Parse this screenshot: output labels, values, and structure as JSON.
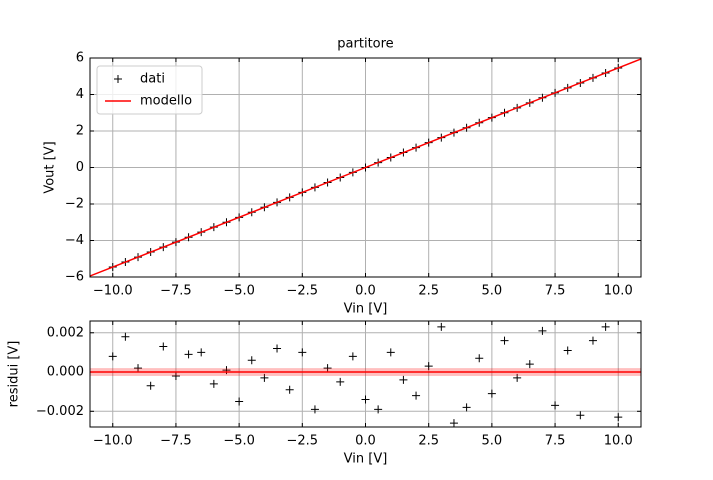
{
  "chart_data": [
    {
      "type": "scatter",
      "title": "partitore",
      "xlabel": "Vin [V]",
      "ylabel": "Vout [V]",
      "xlim": [
        -10.9,
        10.9
      ],
      "ylim": [
        -6,
        6
      ],
      "xticks": [
        {
          "value": -10,
          "label": "−10.0"
        },
        {
          "value": -7.5,
          "label": "−7.5"
        },
        {
          "value": -5,
          "label": "−5.0"
        },
        {
          "value": -2.5,
          "label": "−2.5"
        },
        {
          "value": 0,
          "label": "0.0"
        },
        {
          "value": 2.5,
          "label": "2.5"
        },
        {
          "value": 5,
          "label": "5.0"
        },
        {
          "value": 7.5,
          "label": "7.5"
        },
        {
          "value": 10,
          "label": "10.0"
        }
      ],
      "yticks": [
        {
          "value": -6,
          "label": "−6"
        },
        {
          "value": -4,
          "label": "−4"
        },
        {
          "value": -2,
          "label": "−2"
        },
        0,
        2,
        4,
        6
      ],
      "grid": true,
      "legend": "upper-left",
      "series": [
        {
          "name": "dati",
          "type": "scatter",
          "color": "#000000",
          "x": [
            -10,
            -9.5,
            -9,
            -8.5,
            -8,
            -7.5,
            -7,
            -6.5,
            -6,
            -5.5,
            -5,
            -4.5,
            -4,
            -3.5,
            -3,
            -2.5,
            -2,
            -1.5,
            -1,
            -0.5,
            0,
            0.5,
            1,
            1.5,
            2,
            2.5,
            3,
            3.5,
            4,
            4.5,
            5,
            5.5,
            6,
            6.5,
            7,
            7.5,
            8,
            8.5,
            9,
            9.5,
            10
          ],
          "values": [
            -5.45,
            -5.18,
            -4.91,
            -4.63,
            -4.36,
            -4.09,
            -3.82,
            -3.54,
            -3.27,
            -3.0,
            -2.73,
            -2.45,
            -2.18,
            -1.91,
            -1.64,
            -1.36,
            -1.09,
            -0.82,
            -0.55,
            -0.27,
            0,
            0.27,
            0.55,
            0.82,
            1.09,
            1.36,
            1.64,
            1.91,
            2.18,
            2.45,
            2.73,
            3.0,
            3.27,
            3.54,
            3.82,
            4.09,
            4.36,
            4.63,
            4.91,
            5.18,
            5.45
          ]
        },
        {
          "name": "modello",
          "type": "line",
          "color": "#ff0000",
          "x": [
            -11,
            11
          ],
          "values": [
            -6,
            6
          ]
        }
      ]
    },
    {
      "type": "scatter",
      "xlabel": "Vin [V]",
      "ylabel": "residui [V]",
      "xlim": [
        -10.9,
        10.9
      ],
      "ylim": [
        -0.0028,
        0.0026
      ],
      "xticks": [
        {
          "value": -10,
          "label": "−10.0"
        },
        {
          "value": -7.5,
          "label": "−7.5"
        },
        {
          "value": -5,
          "label": "−5.0"
        },
        {
          "value": -2.5,
          "label": "−2.5"
        },
        {
          "value": 0,
          "label": "0.0"
        },
        {
          "value": 2.5,
          "label": "2.5"
        },
        {
          "value": 5,
          "label": "5.0"
        },
        {
          "value": 7.5,
          "label": "7.5"
        },
        {
          "value": 10,
          "label": "10.0"
        }
      ],
      "yticks": [
        {
          "value": -0.002,
          "label": "−0.002"
        },
        {
          "value": 0,
          "label": "0.000"
        },
        {
          "value": 0.002,
          "label": "0.002"
        }
      ],
      "grid": true,
      "series": [
        {
          "type": "scatter",
          "color": "#000000",
          "x": [
            -10,
            -9.5,
            -9,
            -8.5,
            -8,
            -7.5,
            -7,
            -6.5,
            -6,
            -5.5,
            -5,
            -4.5,
            -4,
            -3.5,
            -3,
            -2.5,
            -2,
            -1.5,
            -1,
            -0.5,
            0,
            0.5,
            1,
            1.5,
            2,
            2.5,
            3,
            3.5,
            4,
            4.5,
            5,
            5.5,
            6,
            6.5,
            7,
            7.5,
            8,
            8.5,
            9,
            9.5,
            10
          ],
          "values": [
            0.0008,
            0.0018,
            0.0002,
            -0.0007,
            0.0013,
            -0.0002,
            0.0009,
            0.001,
            -0.0006,
            0.0001,
            -0.0015,
            0.0006,
            -0.0003,
            0.0012,
            -0.0009,
            0.001,
            -0.0019,
            0.0002,
            -0.0005,
            0.0008,
            -0.0014,
            -0.0019,
            0.001,
            -0.0004,
            -0.0012,
            0.0003,
            0.0023,
            -0.0026,
            -0.0018,
            0.0007,
            -0.0011,
            0.0016,
            -0.0003,
            0.0004,
            0.0021,
            -0.0017,
            0.0011,
            -0.0022,
            0.0016,
            0.0023,
            -0.0023
          ]
        },
        {
          "type": "line",
          "color": "#ff0000",
          "x": [
            -11,
            11
          ],
          "values": [
            0,
            0
          ],
          "error": 0.0002
        }
      ]
    }
  ]
}
